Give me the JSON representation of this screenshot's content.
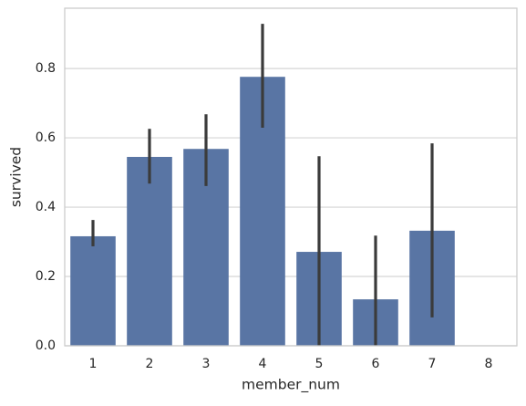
{
  "chart_data": {
    "type": "bar",
    "x_label": "member_num",
    "y_label": "survived",
    "categories": [
      "1",
      "2",
      "3",
      "4",
      "5",
      "6",
      "7",
      "8"
    ],
    "values": [
      0.316,
      0.545,
      0.568,
      0.776,
      0.271,
      0.134,
      0.332,
      0
    ],
    "ci_low": [
      0.287,
      0.468,
      0.461,
      0.629,
      0,
      0,
      0.082,
      0
    ],
    "ci_high": [
      0.363,
      0.626,
      0.668,
      0.929,
      0.547,
      0.318,
      0.584,
      0
    ],
    "color": "#5975a4",
    "error_color": "#3b3b3b",
    "ylim": [
      0,
      0.974
    ],
    "yticks": [
      {
        "value": 0,
        "label": "0.0"
      },
      0.2,
      0.4,
      0.6,
      0.8
    ],
    "grid": true
  }
}
